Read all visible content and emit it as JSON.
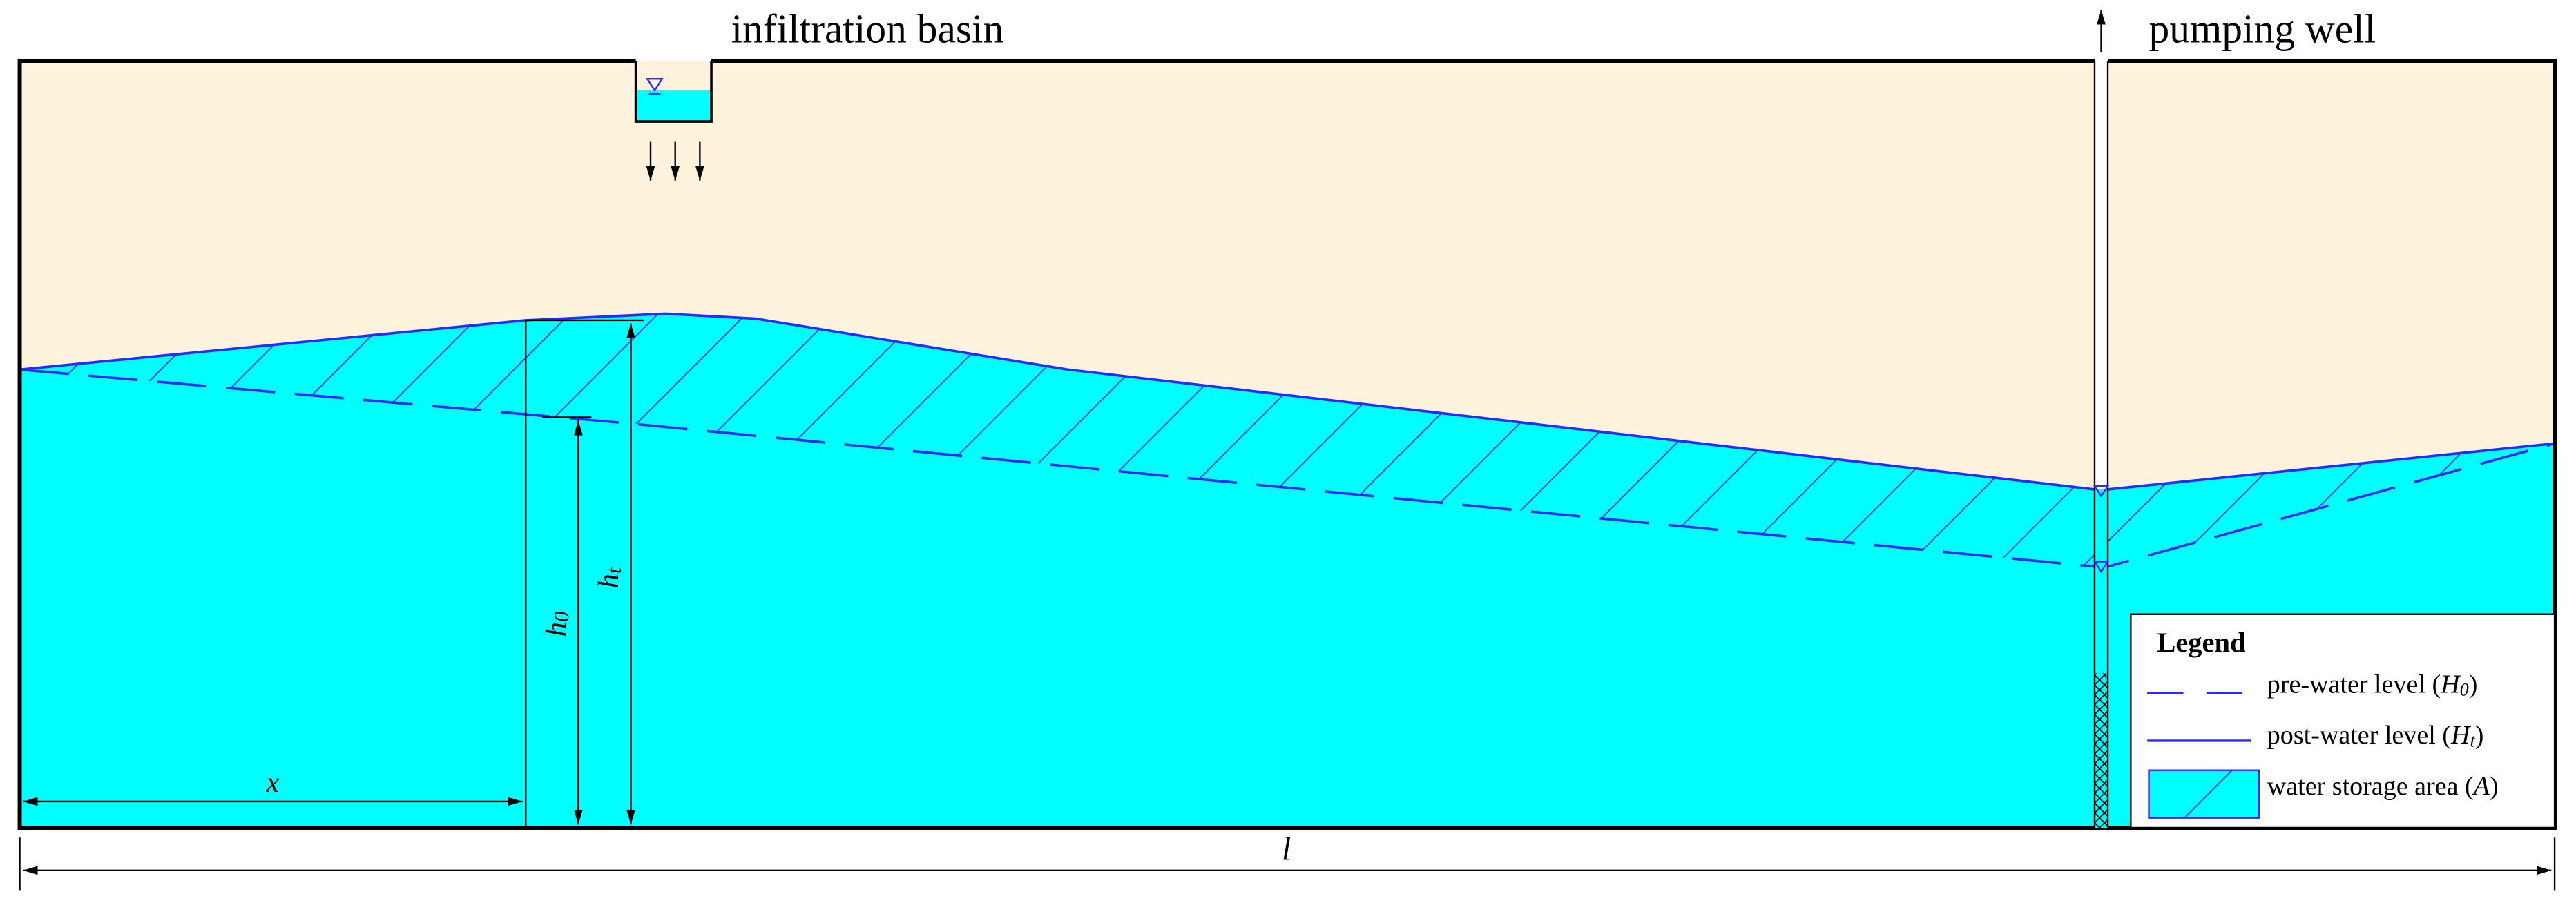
{
  "labels": {
    "basin": "infiltration basin",
    "well": "pumping well"
  },
  "legend": {
    "title": "Legend",
    "items": [
      {
        "text": "pre-water level (",
        "var": "H",
        "sub": "0",
        "end": ")"
      },
      {
        "text": "post-water level (",
        "var": "H",
        "sub": "t",
        "end": ")"
      },
      {
        "text": "water storage area (",
        "var": "A",
        "end": ")"
      }
    ]
  },
  "dimensions": {
    "x": "x",
    "h0": {
      "var": "h",
      "sub": "0"
    },
    "ht": {
      "var": "h",
      "sub": "t"
    },
    "l": "l"
  }
}
